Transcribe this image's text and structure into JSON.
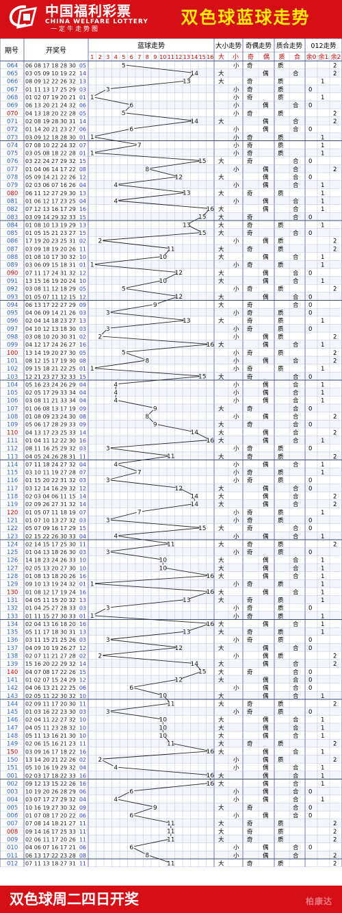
{
  "header": {
    "logo_cn": "中国福利彩票",
    "logo_en": "CHINA WELFARE LOTTERY",
    "logo_sub": "一定牛走势图",
    "title": "双色球蓝球走势"
  },
  "footer": {
    "text": "双色球周二四日开奖",
    "watermark": "柏康达"
  },
  "colors": {
    "brand_red": "#d60f16",
    "title_yellow": "#ffeb00",
    "issue_blue": "#2f5fd0",
    "issue_red": "#d10000",
    "blue_ball": "#2b3bd6",
    "grid": "#b9c3dc"
  },
  "chart_data": {
    "type": "table",
    "columns": {
      "issue": "期号",
      "draw": "开奖号",
      "blue_trend": "蓝球走势",
      "size": "大小走势",
      "parity": "奇偶走势",
      "prime": "质合走势",
      "mod3": "012走势"
    },
    "sub_headers": {
      "size": [
        "大",
        "小"
      ],
      "parity": [
        "奇",
        "偶"
      ],
      "prime": [
        "质",
        "合"
      ],
      "mod3": [
        "余0",
        "余1",
        "余2"
      ]
    },
    "blue_axis": [
      1,
      2,
      3,
      4,
      5,
      6,
      7,
      8,
      9,
      10,
      11,
      12,
      13,
      14,
      15,
      16
    ],
    "rows": [
      {
        "issue": "064",
        "reds": "06 08 17 18 28 30",
        "blue": 5
      },
      {
        "issue": "065",
        "reds": "03 05 09 10 19 22",
        "blue": 14
      },
      {
        "issue": "066",
        "reds": "08 09 12 22 26 32",
        "blue": 13
      },
      {
        "issue": "067",
        "reds": "01 11 13 17 25 29",
        "blue": 3
      },
      {
        "issue": "068",
        "reds": "01 02 07 19 20 21",
        "blue": 1
      },
      {
        "issue": "069",
        "reds": "06 13 20 21 24 32",
        "blue": 6
      },
      {
        "issue": "070",
        "reds": "04 13 18 20 22 28",
        "blue": 5
      },
      {
        "issue": "071",
        "reds": "02 08 19 28 30 31",
        "blue": 14
      },
      {
        "issue": "072",
        "reds": "01 14 20 21 23 27",
        "blue": 6
      },
      {
        "issue": "073",
        "reds": "03 09 12 18 28 30",
        "blue": 1
      },
      {
        "issue": "074",
        "reds": "07 08 10 22 24 32",
        "blue": 7
      },
      {
        "issue": "075",
        "reds": "03 05 08 18 22 28",
        "blue": 1
      },
      {
        "issue": "076",
        "reds": "03 22 24 27 29 32",
        "blue": 15
      },
      {
        "issue": "077",
        "reds": "01 04 06 14 17 22",
        "blue": 8
      },
      {
        "issue": "078",
        "reds": "05 09 14 21 22 26",
        "blue": 12
      },
      {
        "issue": "079",
        "reds": "02 03 06 07 16 26",
        "blue": 4
      },
      {
        "issue": "080",
        "reds": "06 11 12 27 29 30",
        "blue": 13
      },
      {
        "issue": "081",
        "reds": "01 06 12 17 23 25",
        "blue": 4
      },
      {
        "issue": "082",
        "reds": "07 12 13 16 17 29",
        "blue": 16
      },
      {
        "issue": "083",
        "reds": "03 09 14 29 32 33",
        "blue": 15
      },
      {
        "issue": "084",
        "reds": "01 08 10 13 19 29",
        "blue": 13
      },
      {
        "issue": "085",
        "reds": "01 05 15 21 23 27",
        "blue": 15
      },
      {
        "issue": "086",
        "reds": "17 19 20 23 25 31",
        "blue": 2
      },
      {
        "issue": "087",
        "reds": "03 09 18 19 20 26",
        "blue": 11
      },
      {
        "issue": "088",
        "reds": "01 08 10 17 30 32",
        "blue": 10
      },
      {
        "issue": "089",
        "reds": "03 06 09 15 18 31",
        "blue": 1
      },
      {
        "issue": "090",
        "reds": "07 11 17 24 31 32",
        "blue": 12
      },
      {
        "issue": "091",
        "reds": "13 15 16 19 20 24",
        "blue": 10
      },
      {
        "issue": "092",
        "reds": "03 08 11 12 18 29",
        "blue": 5
      },
      {
        "issue": "093",
        "reds": "01 05 07 11 12 15",
        "blue": 12
      },
      {
        "issue": "094",
        "reds": "06 13 17 22 27 29",
        "blue": 9
      },
      {
        "issue": "095",
        "reds": "04 06 09 14 21 26",
        "blue": 3
      },
      {
        "issue": "096",
        "reds": "02 04 14 18 23 27",
        "blue": 13
      },
      {
        "issue": "097",
        "reds": "04 10 12 13 18 30",
        "blue": 3
      },
      {
        "issue": "098",
        "reds": "03 08 10 20 30 31",
        "blue": 2
      },
      {
        "issue": "099",
        "reds": "04 12 17 24 26 27",
        "blue": 16
      },
      {
        "issue": "100",
        "reds": "13 14 19 20 27 30",
        "blue": 5
      },
      {
        "issue": "101",
        "reds": "08 12 15 17 19 30",
        "blue": 8
      },
      {
        "issue": "102",
        "reds": "09 15 18 21 22 25",
        "blue": 1
      },
      {
        "issue": "103",
        "reds": "12 21 23 27 32 33",
        "blue": 15
      },
      {
        "issue": "104",
        "reds": "05 16 23 24 26 29",
        "blue": 4
      },
      {
        "issue": "105",
        "reds": "02 05 17 29 33 34",
        "blue": 4
      },
      {
        "issue": "106",
        "reds": "03 08 11 21 33 34",
        "blue": 4
      },
      {
        "issue": "107",
        "reds": "01 06 08 13 17 19",
        "blue": 9
      },
      {
        "issue": "108",
        "reds": "01 08 09 23 24 30",
        "blue": 8
      },
      {
        "issue": "109",
        "reds": "05 06 17 28 29 33",
        "blue": 9
      },
      {
        "issue": "110",
        "reds": "04 13 17 23 25 33",
        "blue": 14
      },
      {
        "issue": "111",
        "reds": "01 04 11 12 22 30",
        "blue": 16
      },
      {
        "issue": "112",
        "reds": "08 11 16 25 29 32",
        "blue": 3
      },
      {
        "issue": "113",
        "reds": "04 05 24 26 28 31",
        "blue": 11
      },
      {
        "issue": "114",
        "reds": "07 11 18 24 27 32",
        "blue": 4
      },
      {
        "issue": "115",
        "reds": "03 10 11 19 27 28",
        "blue": 7
      },
      {
        "issue": "116",
        "reds": "01 15 20 22 31 32",
        "blue": 3
      },
      {
        "issue": "117",
        "reds": "03 12 14 16 29 32",
        "blue": 12
      },
      {
        "issue": "118",
        "reds": "02 03 04 06 11 15",
        "blue": 14
      },
      {
        "issue": "119",
        "reds": "02 09 26 27 31 32",
        "blue": 14
      },
      {
        "issue": "120",
        "reds": "01 05 07 11 18 19",
        "blue": 7
      },
      {
        "issue": "121",
        "reds": "01 07 10 13 27 32",
        "blue": 3
      },
      {
        "issue": "122",
        "reds": "05 07 09 16 17 29",
        "blue": 15
      },
      {
        "issue": "123",
        "reds": "02 15 22 26 30 33",
        "blue": 4
      },
      {
        "issue": "124",
        "reds": "02 14 15 17 25 30",
        "blue": 11
      },
      {
        "issue": "125",
        "reds": "01 04 13 18 26 30",
        "blue": 3
      },
      {
        "issue": "126",
        "reds": "14 18 23 24 26 33",
        "blue": 10
      },
      {
        "issue": "127",
        "reds": "02 05 13 20 27 30",
        "blue": 10
      },
      {
        "issue": "128",
        "reds": "01 08 13 18 20 26",
        "blue": 16
      },
      {
        "issue": "129",
        "reds": "09 10 13 19 24 32",
        "blue": 1
      },
      {
        "issue": "130",
        "reds": "01 08 12 17 19 24",
        "blue": 16
      },
      {
        "issue": "131",
        "reds": "04 05 11 15 20 32",
        "blue": 13
      },
      {
        "issue": "132",
        "reds": "01 04 25 27 28 33",
        "blue": 3
      },
      {
        "issue": "133",
        "reds": "01 11 15 27 30 33",
        "blue": 1
      },
      {
        "issue": "134",
        "reds": "02 04 13 16 18 20",
        "blue": 16
      },
      {
        "issue": "135",
        "reds": "05 11 17 18 30 31",
        "blue": 13
      },
      {
        "issue": "136",
        "reds": "03 11 15 21 25 26",
        "blue": 3
      },
      {
        "issue": "137",
        "reds": "04 09 10 19 26 27",
        "blue": 12
      },
      {
        "issue": "138",
        "reds": "02 07 11 21 27 28",
        "blue": 2
      },
      {
        "issue": "139",
        "reds": "15 16 20 22 29 32",
        "blue": 14
      },
      {
        "issue": "140",
        "reds": "04 07 08 17 22 26",
        "blue": 15
      },
      {
        "issue": "141",
        "reds": "01 02 07 15 24 29",
        "blue": 12
      },
      {
        "issue": "142",
        "reds": "04 06 13 21 22 25",
        "blue": 6
      },
      {
        "issue": "143",
        "reds": "02 05 11 22 30 32",
        "blue": 10
      },
      {
        "issue": "144",
        "reds": "02 09 11 17 20 30",
        "blue": 11
      },
      {
        "issue": "145",
        "reds": "01 03 16 22 23 30",
        "blue": 3
      },
      {
        "issue": "146",
        "reds": "02 04 11 22 27 32",
        "blue": 10
      },
      {
        "issue": "147",
        "reds": "04 05 11 23 28 32",
        "blue": 10
      },
      {
        "issue": "148",
        "reds": "05 11 13 16 21 30",
        "blue": 10
      },
      {
        "issue": "149",
        "reds": "02 06 15 16 21 23",
        "blue": 11
      },
      {
        "issue": "150",
        "reds": "03 09 16 17 18 22",
        "blue": 16
      },
      {
        "issue": "150",
        "reds": "13 14 20 21 22 26",
        "blue": 2
      },
      {
        "issue": "151",
        "reds": "05 10 16 19 29 32",
        "blue": 4
      },
      {
        "issue": "001",
        "reds": "02 03 17 18 22 33",
        "blue": 16
      },
      {
        "issue": "002",
        "reds": "09 12 13 15 22 26",
        "blue": 16
      },
      {
        "issue": "003",
        "reds": "10 19 20 26 28 29",
        "blue": 6
      },
      {
        "issue": "004",
        "reds": "03 07 17 27 29 32",
        "blue": 4
      },
      {
        "issue": "005",
        "reds": "10 16 19 27 30 32",
        "blue": 9
      },
      {
        "issue": "006",
        "reds": "01 07 08 17 20 22",
        "blue": 6
      },
      {
        "issue": "007",
        "reds": "07 08 14 18 21 27",
        "blue": 11
      },
      {
        "issue": "008",
        "reds": "09 14 16 17 25 33",
        "blue": 11
      },
      {
        "issue": "009",
        "reds": "02 06 11 17 20 26",
        "blue": 11
      },
      {
        "issue": "010",
        "reds": "04 06 07 16 17 21",
        "blue": 6
      },
      {
        "issue": "011",
        "reds": "06 13 17 22 23 28",
        "blue": 8
      },
      {
        "issue": "012",
        "reds": "07 11 13 18 27 31",
        "blue": 11
      }
    ]
  }
}
